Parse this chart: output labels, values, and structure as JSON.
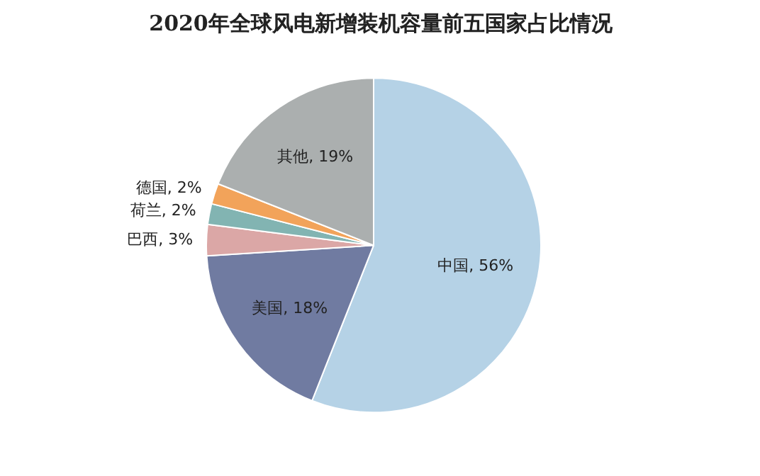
{
  "chart_data": {
    "type": "pie",
    "title": "2020年全球风电新增装机容量前五国家占比情况",
    "categories": [
      "中国",
      "美国",
      "巴西",
      "荷兰",
      "德国",
      "其他"
    ],
    "values": [
      56,
      18,
      3,
      2,
      2,
      19
    ],
    "colors": [
      "#b5d2e6",
      "#707ba1",
      "#dba7a6",
      "#82b4b2",
      "#f2a35a",
      "#abafaf"
    ],
    "value_labels": [
      "56%",
      "18%",
      "3%",
      "2%",
      "2%",
      "19%"
    ],
    "legend": false
  }
}
